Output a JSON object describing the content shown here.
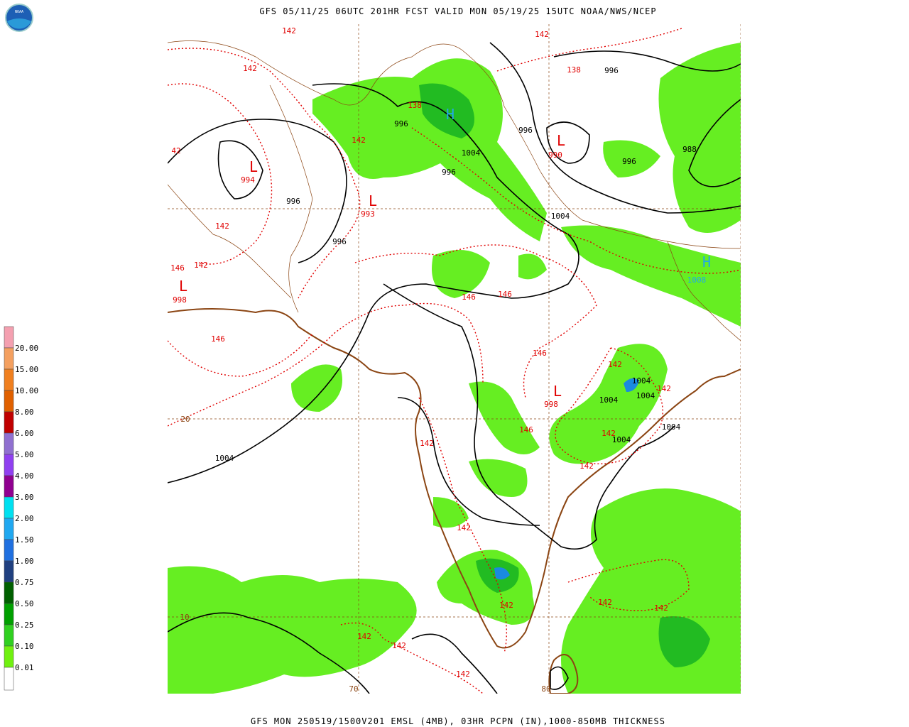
{
  "header": {
    "title": "GFS 05/11/25 06UTC 201HR FCST VALID MON 05/19/25 15UTC NOAA/NWS/NCEP"
  },
  "footer": {
    "caption": "GFS MON 250519/1500V201 EMSL (4MB), 03HR PCPN (IN),1000-850MB THICKNESS"
  },
  "logo": {
    "text": "NOAA"
  },
  "legend": {
    "labels": [
      "20.00",
      "15.00",
      "10.00",
      "8.00",
      "6.00",
      "5.00",
      "4.00",
      "3.00",
      "2.00",
      "1.50",
      "1.00",
      "0.75",
      "0.50",
      "0.25",
      "0.10",
      "0.01"
    ],
    "colors": [
      "#f4a0b0",
      "#f4a060",
      "#f08020",
      "#e06000",
      "#c00000",
      "#9070d0",
      "#9040f0",
      "#900090",
      "#00e0f0",
      "#20a8f0",
      "#2070e0",
      "#204080",
      "#006000",
      "#00a000",
      "#30d020",
      "#70f010",
      "#ffffff"
    ]
  },
  "map": {
    "labels": [
      "142",
      "142",
      "142",
      "138",
      "996",
      "138",
      "996",
      "H",
      "996",
      "L",
      "990",
      "142",
      "1004",
      "988",
      "996",
      "42",
      "L",
      "994",
      "996",
      "996",
      "L",
      "993",
      "1004",
      "142",
      "996",
      "H",
      "1008",
      "146",
      "142",
      "L",
      "998",
      "146",
      "146",
      "146",
      "146",
      "142",
      "1004",
      "L",
      "998",
      "1004",
      "1004",
      "142",
      "20",
      "1004",
      "146",
      "142",
      "1004",
      "142",
      "1004",
      "142",
      "142",
      "142",
      "142",
      "142",
      "10",
      "142",
      "142",
      "142",
      "70",
      "80"
    ]
  }
}
